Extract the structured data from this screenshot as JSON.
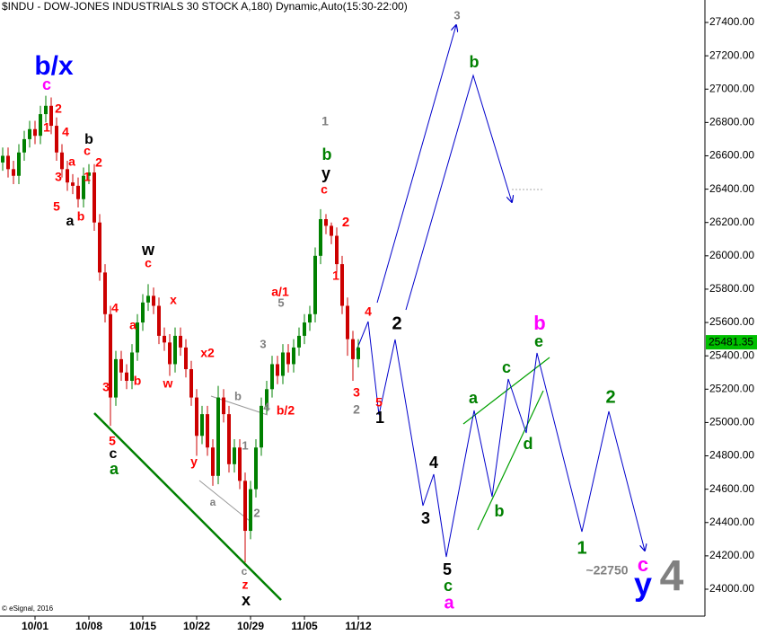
{
  "chart_data": {
    "type": "candlestick",
    "title": "$INDU - DOW-JONES INDUSTRIALS 30 STOCK A,180) Dynamic,Auto(15:30-22:00)",
    "copyright": "© eSignal, 2016",
    "up_color": "#008000",
    "down_color": "#cc0000",
    "open": [
      26560,
      26600,
      26520,
      26480,
      26620,
      26700,
      26760,
      26720,
      26850,
      26900,
      26780,
      26620,
      26520,
      26440,
      26420,
      26340,
      26480,
      26500,
      26200,
      25900,
      25650,
      25150,
      25380,
      25300,
      25250,
      25420,
      25600,
      25720,
      25760,
      25700,
      25520,
      25480,
      25350,
      25520,
      25450,
      25320,
      25150,
      24920,
      25050,
      24850,
      24680,
      25150,
      25050,
      24750,
      24850,
      24650,
      24350,
      24600,
      24850,
      25100,
      25200,
      25350,
      25280,
      25420,
      25350,
      25450,
      25520,
      25600,
      25650,
      26000,
      26220,
      26180,
      26120,
      25950,
      25700,
      25500,
      25380
    ],
    "high": [
      26650,
      26650,
      26570,
      26670,
      26750,
      26810,
      26810,
      26900,
      26960,
      26950,
      26830,
      26670,
      26570,
      26490,
      26470,
      26530,
      26550,
      26550,
      26250,
      25950,
      25700,
      25430,
      25430,
      25350,
      25470,
      25650,
      25770,
      25830,
      25810,
      25750,
      25570,
      25530,
      25570,
      25570,
      25500,
      25370,
      25200,
      25100,
      25100,
      24900,
      25220,
      25200,
      25100,
      24900,
      24900,
      24700,
      24650,
      24900,
      25150,
      25250,
      25400,
      25400,
      25470,
      25470,
      25500,
      25570,
      25650,
      25700,
      26050,
      26280,
      26250,
      26200,
      26170,
      26000,
      25750,
      25550,
      25500
    ],
    "low": [
      26510,
      26470,
      26430,
      26430,
      26570,
      26650,
      26670,
      26670,
      26800,
      26730,
      26570,
      26470,
      26390,
      26370,
      26290,
      26290,
      26430,
      26150,
      25850,
      25600,
      24980,
      25100,
      25250,
      25200,
      25200,
      25370,
      25550,
      25670,
      25650,
      25470,
      25430,
      25280,
      25300,
      25400,
      25270,
      25100,
      24800,
      24870,
      24800,
      24620,
      24630,
      25000,
      24700,
      24700,
      24600,
      24160,
      24300,
      24550,
      24800,
      25050,
      25150,
      25230,
      25230,
      25300,
      25300,
      25400,
      25470,
      25550,
      25600,
      25950,
      26130,
      26070,
      25900,
      25650,
      25400,
      25250,
      25330
    ],
    "close": [
      26600,
      26520,
      26480,
      26620,
      26700,
      26760,
      26720,
      26850,
      26900,
      26780,
      26620,
      26520,
      26440,
      26420,
      26340,
      26480,
      26500,
      26200,
      25900,
      25650,
      25150,
      25380,
      25300,
      25250,
      25420,
      25600,
      25720,
      25760,
      25700,
      25520,
      25480,
      25350,
      25520,
      25450,
      25320,
      25150,
      24920,
      25050,
      24850,
      24680,
      25150,
      25050,
      24750,
      24850,
      24650,
      24350,
      24600,
      24850,
      25100,
      25200,
      25350,
      25280,
      25420,
      25350,
      25450,
      25520,
      25600,
      25650,
      26000,
      26220,
      26180,
      26120,
      25950,
      25700,
      25500,
      25380,
      25450
    ],
    "last_price": 25481.35,
    "ylim": [
      24000,
      27400
    ],
    "yticks": [
      {
        "value": 24000,
        "label": "24000.00"
      },
      {
        "value": 24200,
        "label": "24200.00"
      },
      {
        "value": 24400,
        "label": "24400.00"
      },
      {
        "value": 24600,
        "label": "24600.00"
      },
      {
        "value": 24800,
        "label": "24800.00"
      },
      {
        "value": 25000,
        "label": "25000.00"
      },
      {
        "value": 25200,
        "label": "25200.00"
      },
      {
        "value": 25400,
        "label": "25400.00"
      },
      {
        "value": 25600,
        "label": "25600.00"
      },
      {
        "value": 25800,
        "label": "25800.00"
      },
      {
        "value": 26000,
        "label": "26000.00"
      },
      {
        "value": 26200,
        "label": "26200.00"
      },
      {
        "value": 26400,
        "label": "26400.00"
      },
      {
        "value": 26600,
        "label": "26600.00"
      },
      {
        "value": 26800,
        "label": "26800.00"
      },
      {
        "value": 27000,
        "label": "27000.00"
      },
      {
        "value": 27200,
        "label": "27200.00"
      },
      {
        "value": 27400,
        "label": "27400.00"
      }
    ],
    "xticks": [
      {
        "value": 6,
        "label": "10/01"
      },
      {
        "value": 16,
        "label": "10/08"
      },
      {
        "value": 26,
        "label": "10/15"
      },
      {
        "value": 36,
        "label": "10/22"
      },
      {
        "value": 46,
        "label": "10/29"
      },
      {
        "value": 56,
        "label": "11/05"
      },
      {
        "value": 66,
        "label": "11/12"
      }
    ],
    "annotations": [
      {
        "text": "b/x",
        "color": "#0000ff"
      },
      {
        "text": "c",
        "color": "#ff00ff"
      },
      {
        "text": "2",
        "color": "#ff0000"
      },
      {
        "text": "1",
        "color": "#ff0000"
      },
      {
        "text": "4",
        "color": "#ff0000"
      },
      {
        "text": "a",
        "color": "#ff0000"
      },
      {
        "text": "c",
        "color": "#ff0000"
      },
      {
        "text": "b",
        "color": "#000000"
      },
      {
        "text": "2",
        "color": "#ff0000"
      },
      {
        "text": "3",
        "color": "#ff0000"
      },
      {
        "text": "1",
        "color": "#ff0000"
      },
      {
        "text": "5",
        "color": "#ff0000"
      },
      {
        "text": "b",
        "color": "#ff0000"
      },
      {
        "text": "a",
        "color": "#000000"
      },
      {
        "text": "w",
        "color": "#000000"
      },
      {
        "text": "c",
        "color": "#ff0000"
      },
      {
        "text": "4",
        "color": "#ff0000"
      },
      {
        "text": "a",
        "color": "#ff0000"
      },
      {
        "text": "x",
        "color": "#ff0000"
      },
      {
        "text": "3",
        "color": "#ff0000"
      },
      {
        "text": "b",
        "color": "#ff0000"
      },
      {
        "text": "w",
        "color": "#ff0000"
      },
      {
        "text": "x2",
        "color": "#ff0000"
      },
      {
        "text": "y",
        "color": "#ff0000"
      },
      {
        "text": "5",
        "color": "#ff0000"
      },
      {
        "text": "c",
        "color": "#000000"
      },
      {
        "text": "a",
        "color": "#008000"
      },
      {
        "text": "a",
        "color": "#808080"
      },
      {
        "text": "b",
        "color": "#808080"
      },
      {
        "text": "1",
        "color": "#808080"
      },
      {
        "text": "2",
        "color": "#808080"
      },
      {
        "text": "4",
        "color": "#808080"
      },
      {
        "text": "3",
        "color": "#808080"
      },
      {
        "text": "5",
        "color": "#808080"
      },
      {
        "text": "a/1",
        "color": "#ff0000"
      },
      {
        "text": "b/2",
        "color": "#ff0000"
      },
      {
        "text": "c",
        "color": "#808080"
      },
      {
        "text": "z",
        "color": "#ff0000"
      },
      {
        "text": "x",
        "color": "#000000"
      },
      {
        "text": "1",
        "color": "#808080"
      },
      {
        "text": "b",
        "color": "#008000"
      },
      {
        "text": "y",
        "color": "#000000"
      },
      {
        "text": "c",
        "color": "#ff0000"
      },
      {
        "text": "2",
        "color": "#ff0000"
      },
      {
        "text": "1",
        "color": "#ff0000"
      },
      {
        "text": "4",
        "color": "#ff0000"
      },
      {
        "text": "3",
        "color": "#ff0000"
      },
      {
        "text": "2",
        "color": "#808080"
      },
      {
        "text": "5",
        "color": "#ff0000"
      },
      {
        "text": "1",
        "color": "#000000"
      },
      {
        "text": "2",
        "color": "#000000"
      },
      {
        "text": "3",
        "color": "#808080"
      },
      {
        "text": "b",
        "color": "#008000"
      },
      {
        "text": "4",
        "color": "#000000"
      },
      {
        "text": "3",
        "color": "#000000"
      },
      {
        "text": "5",
        "color": "#000000"
      },
      {
        "text": "c",
        "color": "#008000"
      },
      {
        "text": "a",
        "color": "#ff00ff"
      },
      {
        "text": "a",
        "color": "#008000"
      },
      {
        "text": "b",
        "color": "#008000"
      },
      {
        "text": "c",
        "color": "#008000"
      },
      {
        "text": "d",
        "color": "#008000"
      },
      {
        "text": "b",
        "color": "#ff00ff"
      },
      {
        "text": "e",
        "color": "#008000"
      },
      {
        "text": "2",
        "color": "#008000"
      },
      {
        "text": "1",
        "color": "#008000"
      },
      {
        "text": "~22750",
        "color": "#808080"
      },
      {
        "text": "c",
        "color": "#ff00ff"
      },
      {
        "text": "y",
        "color": "#0000ff"
      },
      {
        "text": "4",
        "color": "#808080"
      }
    ]
  }
}
